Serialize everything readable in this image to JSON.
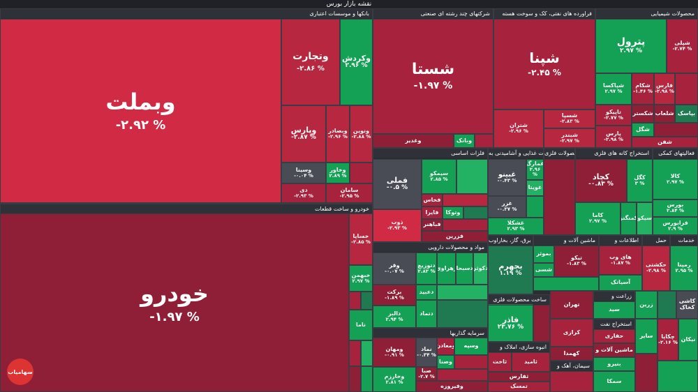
{
  "page_title": "نقشه بازار بورس",
  "logo_text": "سهامیاب",
  "colors": {
    "strong_red": "#d12a44",
    "red": "#a7223c",
    "dark_red": "#7a2036",
    "neutral": "#4a4c55",
    "green": "#23b163",
    "dark_green": "#1f7a52"
  },
  "sectors": {
    "banks": "بانکها و موسسات اعتباری",
    "auto": "خودرو و ساخت قطعات",
    "conglomerate": "شرکتهای چند رشته ای صنعتی",
    "oil": "فراورده های نفتی، کک و سوخت هسته",
    "chem": "محصولات شیمیایی",
    "metals": "فلزات اساسی",
    "food": "محصولات غذایی و آشامیدنی به",
    "metal_products": "محصولات فلزی",
    "mining": "استخراج کانه های فلزی",
    "support": "فعالیتهای کمکی",
    "pharma": "مواد و محصولات دارویی",
    "utilities": "عرضه برق، گاز، بخاراوب",
    "machinery": "ماشین آلات و",
    "it": "اطلاعات و",
    "transport": "حمل",
    "services": "خدمات",
    "investment": "سرمایه گذاریها",
    "nonmetal": "ساخت محصولات فلزی",
    "realestate": "انبوه سازی، املاک و",
    "agri": "زراعت و",
    "oil_extraction": "استخراج نفت",
    "cement": "سیمان، آهک و"
  },
  "tiles": {
    "vbmellat": {
      "name": "وبملت",
      "pct": "-۲.۹۲ %"
    },
    "vtejarat": {
      "name": "وتجارت",
      "pct": "-۲.۸۶ %"
    },
    "vkardesh": {
      "name": "وکردش",
      "pct": "۲.۹۶ %"
    },
    "vpars": {
      "name": "وپارس",
      "pct": "-۲.۸۷ %"
    },
    "vsadr": {
      "name": "وبصادر",
      "pct": "-۲.۹۶ %"
    },
    "vnovin": {
      "name": "ونوین",
      "pct": "-۲.۸۸ %"
    },
    "vsina": {
      "name": "وسینا",
      "pct": "-۰.۰۴ %"
    },
    "vkhavar": {
      "name": "وخاور",
      "pct": "۲.۸۹ %"
    },
    "dey": {
      "name": "دی",
      "pct": "-۲.۹۳ %"
    },
    "saman": {
      "name": "سامان",
      "pct": "-۲.۹۵ %"
    },
    "khodro": {
      "name": "خودرو",
      "pct": "-۱.۹۷ %"
    },
    "khsapa": {
      "name": "خساپا",
      "pct": "-۲.۸۵ %"
    },
    "khbahman": {
      "name": "خبهمن",
      "pct": "۲.۹۷ %"
    },
    "khzamia": {
      "name": "خزامیا",
      "pct": ""
    },
    "kharg": {
      "name": "خارگ",
      "pct": ""
    },
    "nama": {
      "name": "ناما",
      "pct": ""
    },
    "shasta": {
      "name": "شستا",
      "pct": "-۱.۹۷ %"
    },
    "vghadir": {
      "name": "وغدیر",
      "pct": ""
    },
    "vbank": {
      "name": "وبانک",
      "pct": ""
    },
    "shepna": {
      "name": "شپنا",
      "pct": "-۲.۴۵ %"
    },
    "shetran": {
      "name": "شتران",
      "pct": "-۲.۹۶ %"
    },
    "shesina": {
      "name": "شسپا",
      "pct": "-۲.۸۳ %"
    },
    "shebandar": {
      "name": "شبندر",
      "pct": "-۲.۹۷ %"
    },
    "petrol": {
      "name": "پترول",
      "pct": "۲.۹۷ %"
    },
    "shepli": {
      "name": "شپلی",
      "pct": "-۲.۷۴ %"
    },
    "shepkam": {
      "name": "شپاکسا",
      "pct": "۲.۹۷ %"
    },
    "shekam": {
      "name": "شکام",
      "pct": "-۱.۴۶ %"
    },
    "fars": {
      "name": "فارس",
      "pct": "-۲.۹۸ %"
    },
    "tapiko": {
      "name": "تاپیکو",
      "pct": "-۲.۷۷ %"
    },
    "shekhazar": {
      "name": "شکستر",
      "pct": "۲.۷۷ %"
    },
    "shelab": {
      "name": "شلعاب",
      "pct": ""
    },
    "baspak": {
      "name": "بپاسک",
      "pct": ""
    },
    "shekal": {
      "name": "شگل",
      "pct": ""
    },
    "pars": {
      "name": "پارس",
      "pct": "-۲.۹۸ %"
    },
    "shefna": {
      "name": "شفن",
      "pct": ""
    },
    "fameli": {
      "name": "فملی",
      "pct": "-۰.۵ %"
    },
    "fsepko": {
      "name": "سیمکو",
      "pct": "۲.۸۵ %"
    },
    "fakhas": {
      "name": "فخاس",
      "pct": ""
    },
    "faira": {
      "name": "فایرا",
      "pct": ""
    },
    "fvtoka": {
      "name": "وتوکا",
      "pct": ""
    },
    "fhamir": {
      "name": "فباهنر",
      "pct": ""
    },
    "zob": {
      "name": "ذوب",
      "pct": "-۲.۹۳ %"
    },
    "farazin": {
      "name": "فزرین",
      "pct": ""
    },
    "ghinno": {
      "name": "غبینو",
      "pct": "-۰.۴۳ %"
    },
    "ghamarak": {
      "name": "غمارگ",
      "pct": "۲.۹۶ %"
    },
    "ghovita": {
      "name": "غویتا",
      "pct": ""
    },
    "ghor": {
      "name": "غزر",
      "pct": "-۰.۳۷ %"
    },
    "ghashkala": {
      "name": "غشکلا",
      "pct": "۲.۹۳ %"
    },
    "kachad": {
      "name": "کچاد",
      "pct": "-۰.۸۳ %"
    },
    "kegol": {
      "name": "کگل",
      "pct": "۳ %"
    },
    "kama": {
      "name": "کاما",
      "pct": "۲.۹۷ %"
    },
    "kemonghan": {
      "name": "کمنگنز",
      "pct": ""
    },
    "sikov": {
      "name": "سیکو",
      "pct": ""
    },
    "kala": {
      "name": "کالا",
      "pct": "۲.۹۷ %"
    },
    "boors": {
      "name": "بورس",
      "pct": "۲.۸۴ %"
    },
    "farabours": {
      "name": "فرابورس",
      "pct": "۲.۹ %"
    },
    "vaghr": {
      "name": "وقر",
      "pct": "-۰.۰۷ %"
    },
    "daztra": {
      "name": "دتوزیع",
      "pct": "۲.۸۲ %"
    },
    "zahravi": {
      "name": "زهراوی",
      "pct": ""
    },
    "dpaxsh": {
      "name": "دسبحا",
      "pct": ""
    },
    "dokar": {
      "name": "دکوثر",
      "pct": ""
    },
    "barkat": {
      "name": "برکت",
      "pct": "-۱.۸۹ %"
    },
    "dabid": {
      "name": "دعبید",
      "pct": ""
    },
    "dtaman": {
      "name": "دتماد",
      "pct": ""
    },
    "dalbr": {
      "name": "دالبر",
      "pct": "۲.۹۴ %"
    },
    "bajhrom": {
      "name": "بجهرم",
      "pct": "۱.۱۹ %"
    },
    "bamaan": {
      "name": "بموثر",
      "pct": ""
    },
    "bashm": {
      "name": "شسی",
      "pct": ""
    },
    "tiko": {
      "name": "تیکو",
      "pct": "-۱.۸۳ %"
    },
    "hayweb": {
      "name": "های وب",
      "pct": "-۱.۸۷ %"
    },
    "hakeshti": {
      "name": "حکشتی",
      "pct": "-۲.۹۸ %"
    },
    "asiatak": {
      "name": "آسیاتک",
      "pct": ""
    },
    "ramepna": {
      "name": "رمپنا",
      "pct": "۲.۹۵ %"
    },
    "faraz": {
      "name": "فاذر",
      "pct": "۲۳.۷۶ %"
    },
    "vamahan": {
      "name": "ومهان",
      "pct": "-۰.۹۱ %"
    },
    "naad": {
      "name": "نماد",
      "pct": "-۰.۳۴ %"
    },
    "vkharazm": {
      "name": "وخارزم",
      "pct": "۲.۸۱ %"
    },
    "saba": {
      "name": "صبا",
      "pct": "-۲.۷ %"
    },
    "vfirouzeh": {
      "name": "وفیروزه",
      "pct": ""
    },
    "ovana": {
      "name": "ومعادن",
      "pct": ""
    },
    "vsena": {
      "name": "وصنا",
      "pct": ""
    },
    "vsapa": {
      "name": "وسپه",
      "pct": ""
    },
    "tehran": {
      "name": "تهران",
      "pct": ""
    },
    "sid": {
      "name": "سید",
      "pct": ""
    },
    "zagros": {
      "name": "زاگرس",
      "pct": ""
    },
    "hafari": {
      "name": "حفاری",
      "pct": ""
    },
    "sepid": {
      "name": "سپید",
      "pct": ""
    },
    "kegol2": {
      "name": "کهمدا",
      "pct": ""
    },
    "saaqat": {
      "name": "ساقت",
      "pct": ""
    },
    "sakht": {
      "name": "ثاخت",
      "pct": ""
    },
    "thamid": {
      "name": "ثامید",
      "pct": ""
    },
    "tapars": {
      "name": "ثفارس",
      "pct": ""
    },
    "tamsak": {
      "name": "تمسک",
      "pct": ""
    },
    "chekapa": {
      "name": "چکاپا",
      "pct": "-۲.۱۶ %"
    },
    "kashi": {
      "name": "کاشی",
      "pct": ""
    },
    "kakhak": {
      "name": "کخاک",
      "pct": ""
    },
    "nikan": {
      "name": "نیکان",
      "pct": ""
    },
    "samka": {
      "name": "سمکا",
      "pct": ""
    },
    "sabir": {
      "name": "سایر",
      "pct": ""
    },
    "zarin": {
      "name": "زرین",
      "pct": ""
    },
    "takbar": {
      "name": "تاصیکو",
      "pct": ""
    },
    "bnipo": {
      "name": "بنیرو",
      "pct": ""
    },
    "kiro": {
      "name": "کرازی",
      "pct": ""
    },
    "ostaran": {
      "name": "استخراج نفت",
      "pct": ""
    },
    "dalaqa": {
      "name": "ماشین آلات و",
      "pct": ""
    }
  }
}
